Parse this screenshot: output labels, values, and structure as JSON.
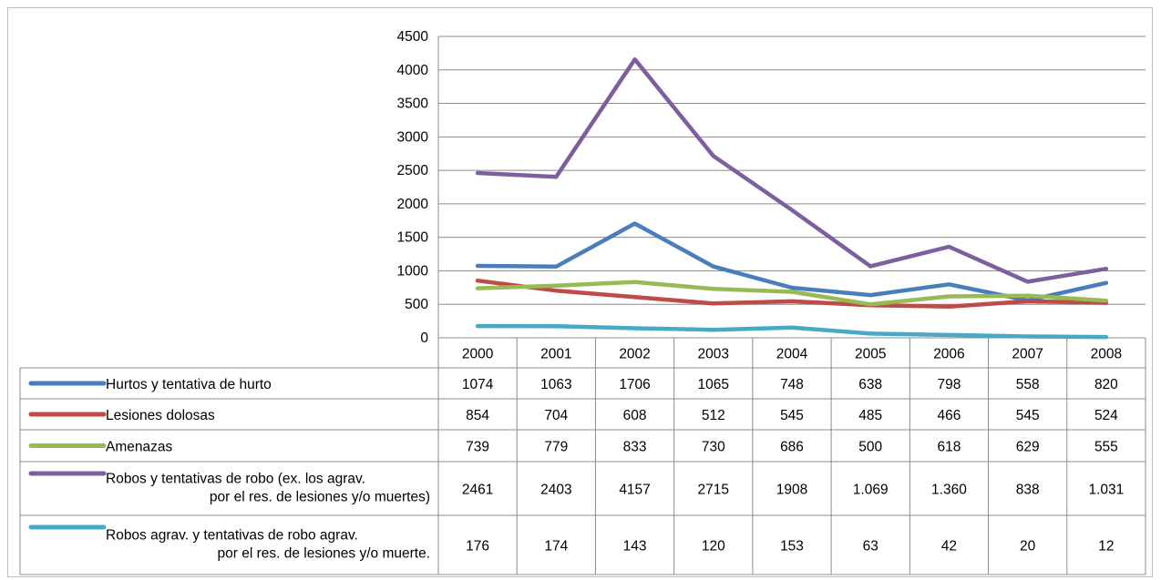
{
  "chart_data": {
    "type": "line",
    "title": "",
    "xlabel": "",
    "ylabel": "",
    "ylim": [
      0,
      4500
    ],
    "yticks": [
      0,
      500,
      1000,
      1500,
      2000,
      2500,
      3000,
      3500,
      4000,
      4500
    ],
    "grid": true,
    "legend": "data-table",
    "categories": [
      "2000",
      "2001",
      "2002",
      "2003",
      "2004",
      "2005",
      "2006",
      "2007",
      "2008"
    ],
    "series": [
      {
        "name_lines": [
          "Hurtos y tentativa de hurto"
        ],
        "color": "#4a7ebb",
        "values": [
          1074,
          1063,
          1706,
          1065,
          748,
          638,
          798,
          558,
          820
        ],
        "labels": [
          "1074",
          "1063",
          "1706",
          "1065",
          "748",
          "638",
          "798",
          "558",
          "820"
        ]
      },
      {
        "name_lines": [
          "Lesiones dolosas"
        ],
        "color": "#be4b48",
        "values": [
          854,
          704,
          608,
          512,
          545,
          485,
          466,
          545,
          524
        ],
        "labels": [
          "854",
          "704",
          "608",
          "512",
          "545",
          "485",
          "466",
          "545",
          "524"
        ]
      },
      {
        "name_lines": [
          "Amenazas"
        ],
        "color": "#98b954",
        "values": [
          739,
          779,
          833,
          730,
          686,
          500,
          618,
          629,
          555
        ],
        "labels": [
          "739",
          "779",
          "833",
          "730",
          "686",
          "500",
          "618",
          "629",
          "555"
        ]
      },
      {
        "name_lines": [
          "Robos y tentativas de robo (ex. los agrav.",
          "por el res. de lesiones y/o muertes)"
        ],
        "color": "#7d5fa0",
        "values": [
          2461,
          2403,
          4157,
          2715,
          1908,
          1069,
          1360,
          838,
          1031
        ],
        "labels": [
          "2461",
          "2403",
          "4157",
          "2715",
          "1908",
          "1.069",
          "1.360",
          "838",
          "1.031"
        ]
      },
      {
        "name_lines": [
          "Robos agrav. y tentativas de robo agrav.",
          "por el res. de lesiones y/o muerte."
        ],
        "color": "#46aac5",
        "values": [
          176,
          174,
          143,
          120,
          153,
          63,
          42,
          20,
          12
        ],
        "labels": [
          "176",
          "174",
          "143",
          "120",
          "153",
          "63",
          "42",
          "20",
          "12"
        ]
      }
    ]
  }
}
